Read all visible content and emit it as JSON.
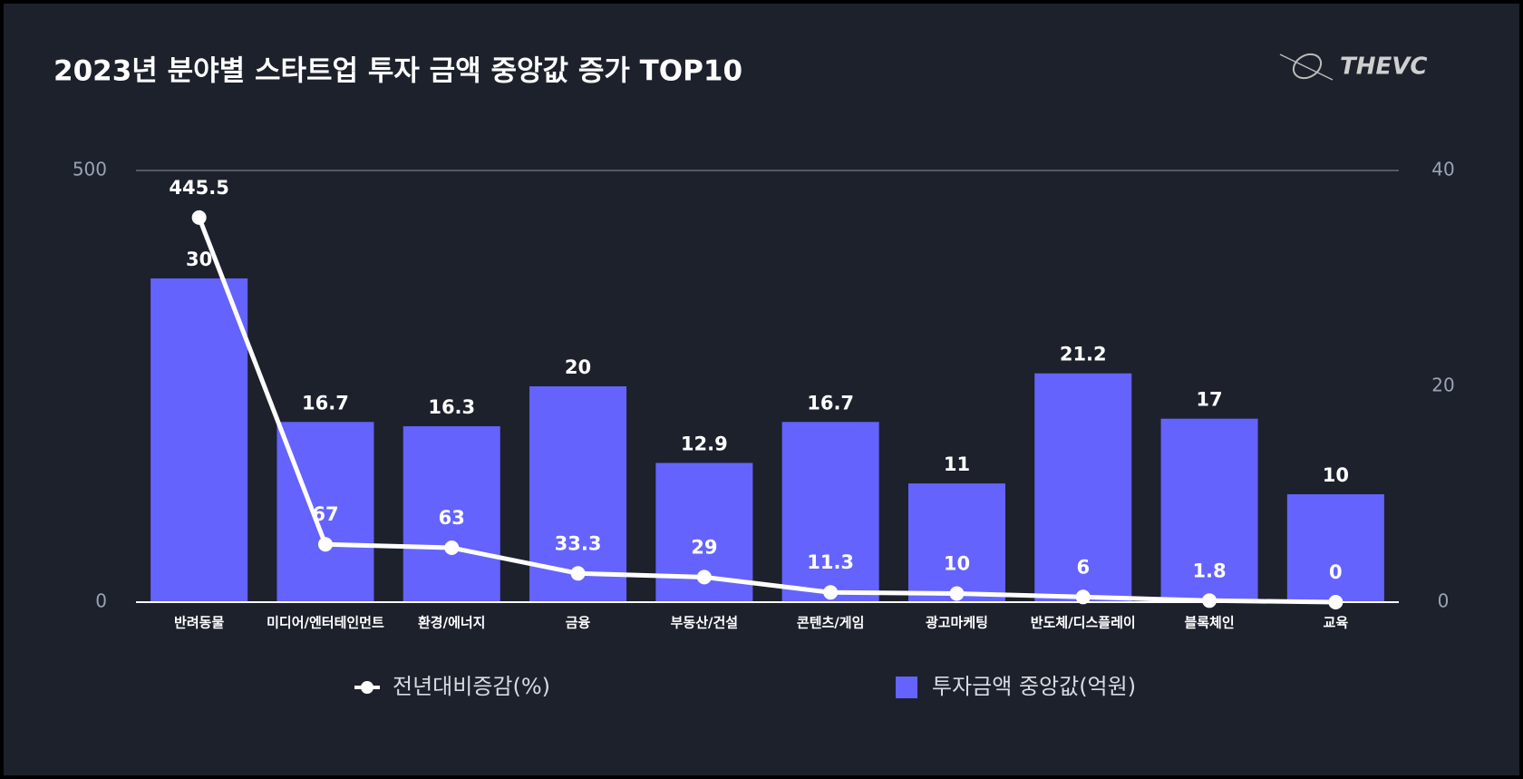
{
  "chart_data": {
    "type": "combo",
    "title": "2023년 분야별 스타트업 투자 금액 중앙값 증가 TOP10",
    "categories": [
      "반려동물",
      "미디어/엔터테인먼트",
      "환경/에너지",
      "금융",
      "부동산/건설",
      "콘텐츠/게임",
      "광고마케팅",
      "반도체/디스플레이",
      "블록체인",
      "교육"
    ],
    "series": [
      {
        "name": "전년대비증감(%)",
        "type": "line",
        "axis": "y",
        "color": "#ffffff",
        "values": [
          445.5,
          67,
          63,
          33.3,
          29,
          11.3,
          10,
          6,
          1.8,
          0
        ]
      },
      {
        "name": "투자금액 중앙값(억원)",
        "type": "bar",
        "axis": "y2",
        "color": "#6563fd",
        "values": [
          30,
          16.7,
          16.3,
          20,
          12.9,
          16.7,
          11,
          21.2,
          17,
          10
        ]
      }
    ],
    "ylim": [
      0,
      500
    ],
    "yticks": [
      0,
      500
    ],
    "y2lim": [
      0,
      40
    ],
    "y2ticks": [
      0,
      20,
      40
    ],
    "grid": true,
    "legend": "bottom"
  },
  "logo": "THEVC"
}
